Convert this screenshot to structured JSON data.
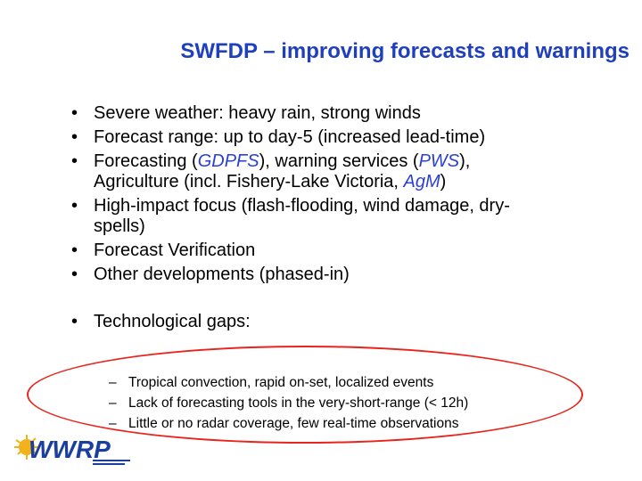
{
  "title": "SWFDP – improving forecasts and warnings",
  "bullets": [
    {
      "text": "Severe weather: heavy rain, strong winds"
    },
    {
      "text": "Forecast range: up to day-5 (increased lead-time)"
    },
    {
      "parts": [
        "Forecasting (",
        "GDPFS",
        "), warning services (",
        "PWS",
        "),",
        "Agriculture (incl. Fishery-Lake Victoria, ",
        "AgM",
        ")"
      ]
    },
    {
      "lines": [
        "High-impact focus (flash-flooding, wind damage, dry-",
        "spells)"
      ]
    },
    {
      "text": "Forecast Verification"
    },
    {
      "text": "Other developments (phased-in)"
    }
  ],
  "gaps": {
    "heading": "Technological gaps:",
    "items": [
      "Tropical convection, rapid on-set, localized events",
      "Lack of forecasting tools in the very-short-range (< 12h)",
      "Little or no radar coverage, few real-time observations"
    ]
  },
  "logo": {
    "text": "WWRP",
    "accent": "#1b3f9e",
    "sun": "#f2b21b"
  },
  "colors": {
    "title": "#1f3fbd",
    "acronym": "#2b3fd6",
    "ellipse": "#e8241c"
  }
}
